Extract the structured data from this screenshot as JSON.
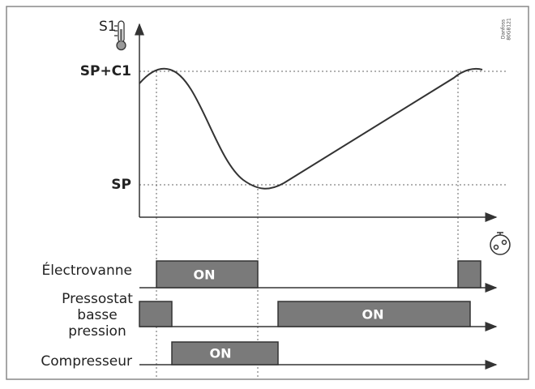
{
  "axis": {
    "y_label": "S1",
    "levels": [
      "SP+C1",
      "SP"
    ]
  },
  "rows": [
    {
      "label": [
        "Électrovanne"
      ],
      "state": "ON"
    },
    {
      "label": [
        "Pressostat",
        "basse",
        "pression"
      ],
      "state": "ON"
    },
    {
      "label": [
        "Compresseur"
      ],
      "state": "ON"
    }
  ],
  "code": [
    "Danfoss",
    "80G8121"
  ]
}
